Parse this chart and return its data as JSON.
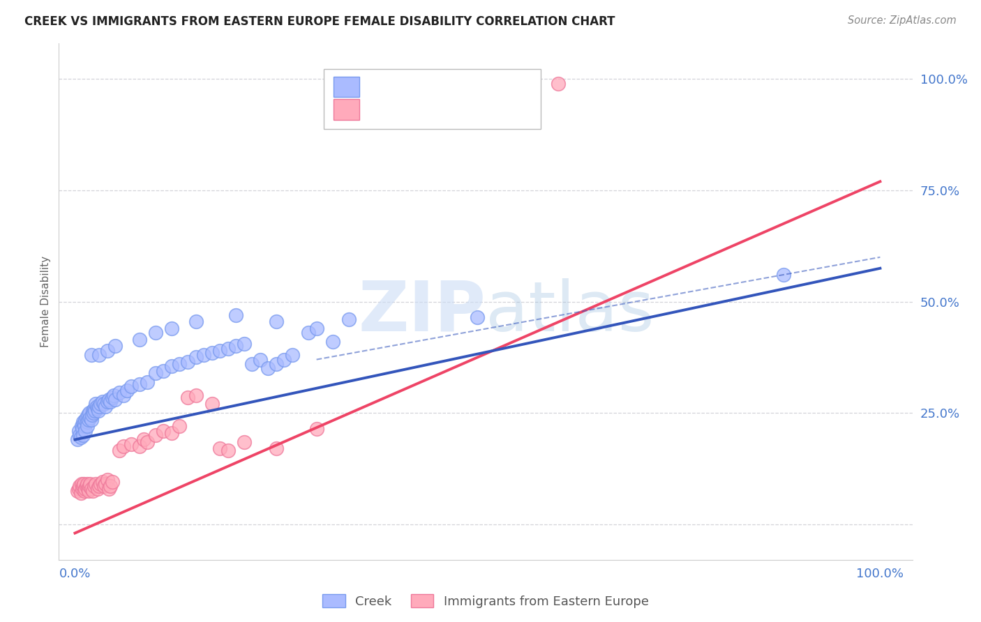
{
  "title": "CREEK VS IMMIGRANTS FROM EASTERN EUROPE FEMALE DISABILITY CORRELATION CHART",
  "source": "Source: ZipAtlas.com",
  "ylabel": "Female Disability",
  "background_color": "#ffffff",
  "grid_color": "#c8c8d0",
  "creek_color": "#aabbff",
  "creek_edge_color": "#7799ee",
  "imm_color": "#ffaabb",
  "imm_edge_color": "#ee7799",
  "creek_line_color": "#3355bb",
  "imm_line_color": "#ee4466",
  "title_color": "#222222",
  "label_color": "#4477cc",
  "creek_scatter": [
    [
      0.003,
      0.19
    ],
    [
      0.005,
      0.21
    ],
    [
      0.006,
      0.2
    ],
    [
      0.007,
      0.195
    ],
    [
      0.008,
      0.22
    ],
    [
      0.009,
      0.215
    ],
    [
      0.01,
      0.23
    ],
    [
      0.01,
      0.2
    ],
    [
      0.011,
      0.225
    ],
    [
      0.012,
      0.22
    ],
    [
      0.013,
      0.21
    ],
    [
      0.013,
      0.235
    ],
    [
      0.014,
      0.24
    ],
    [
      0.015,
      0.23
    ],
    [
      0.015,
      0.22
    ],
    [
      0.016,
      0.245
    ],
    [
      0.017,
      0.235
    ],
    [
      0.018,
      0.25
    ],
    [
      0.019,
      0.24
    ],
    [
      0.02,
      0.235
    ],
    [
      0.021,
      0.245
    ],
    [
      0.022,
      0.255
    ],
    [
      0.023,
      0.25
    ],
    [
      0.024,
      0.26
    ],
    [
      0.025,
      0.255
    ],
    [
      0.026,
      0.27
    ],
    [
      0.027,
      0.265
    ],
    [
      0.028,
      0.26
    ],
    [
      0.029,
      0.255
    ],
    [
      0.03,
      0.265
    ],
    [
      0.032,
      0.27
    ],
    [
      0.034,
      0.275
    ],
    [
      0.036,
      0.27
    ],
    [
      0.038,
      0.265
    ],
    [
      0.04,
      0.275
    ],
    [
      0.042,
      0.28
    ],
    [
      0.044,
      0.275
    ],
    [
      0.046,
      0.285
    ],
    [
      0.048,
      0.29
    ],
    [
      0.05,
      0.28
    ],
    [
      0.055,
      0.295
    ],
    [
      0.06,
      0.29
    ],
    [
      0.065,
      0.3
    ],
    [
      0.07,
      0.31
    ],
    [
      0.08,
      0.315
    ],
    [
      0.09,
      0.32
    ],
    [
      0.1,
      0.34
    ],
    [
      0.11,
      0.345
    ],
    [
      0.12,
      0.355
    ],
    [
      0.13,
      0.36
    ],
    [
      0.14,
      0.365
    ],
    [
      0.15,
      0.375
    ],
    [
      0.16,
      0.38
    ],
    [
      0.17,
      0.385
    ],
    [
      0.18,
      0.39
    ],
    [
      0.19,
      0.395
    ],
    [
      0.2,
      0.4
    ],
    [
      0.21,
      0.405
    ],
    [
      0.22,
      0.36
    ],
    [
      0.23,
      0.37
    ],
    [
      0.24,
      0.35
    ],
    [
      0.25,
      0.36
    ],
    [
      0.26,
      0.37
    ],
    [
      0.27,
      0.38
    ],
    [
      0.29,
      0.43
    ],
    [
      0.3,
      0.44
    ],
    [
      0.32,
      0.41
    ],
    [
      0.34,
      0.46
    ],
    [
      0.02,
      0.38
    ],
    [
      0.03,
      0.38
    ],
    [
      0.04,
      0.39
    ],
    [
      0.05,
      0.4
    ],
    [
      0.08,
      0.415
    ],
    [
      0.1,
      0.43
    ],
    [
      0.12,
      0.44
    ],
    [
      0.15,
      0.455
    ],
    [
      0.2,
      0.47
    ],
    [
      0.25,
      0.455
    ],
    [
      0.5,
      0.465
    ],
    [
      0.88,
      0.56
    ]
  ],
  "imm_scatter": [
    [
      0.003,
      0.075
    ],
    [
      0.005,
      0.08
    ],
    [
      0.006,
      0.085
    ],
    [
      0.007,
      0.07
    ],
    [
      0.008,
      0.09
    ],
    [
      0.009,
      0.08
    ],
    [
      0.01,
      0.085
    ],
    [
      0.011,
      0.09
    ],
    [
      0.012,
      0.075
    ],
    [
      0.013,
      0.08
    ],
    [
      0.014,
      0.085
    ],
    [
      0.015,
      0.09
    ],
    [
      0.016,
      0.08
    ],
    [
      0.017,
      0.075
    ],
    [
      0.018,
      0.085
    ],
    [
      0.019,
      0.09
    ],
    [
      0.02,
      0.08
    ],
    [
      0.022,
      0.075
    ],
    [
      0.024,
      0.085
    ],
    [
      0.026,
      0.09
    ],
    [
      0.028,
      0.08
    ],
    [
      0.03,
      0.085
    ],
    [
      0.032,
      0.09
    ],
    [
      0.034,
      0.095
    ],
    [
      0.036,
      0.085
    ],
    [
      0.038,
      0.09
    ],
    [
      0.04,
      0.1
    ],
    [
      0.042,
      0.08
    ],
    [
      0.044,
      0.085
    ],
    [
      0.046,
      0.095
    ],
    [
      0.055,
      0.165
    ],
    [
      0.06,
      0.175
    ],
    [
      0.07,
      0.18
    ],
    [
      0.08,
      0.175
    ],
    [
      0.085,
      0.19
    ],
    [
      0.09,
      0.185
    ],
    [
      0.1,
      0.2
    ],
    [
      0.11,
      0.21
    ],
    [
      0.12,
      0.205
    ],
    [
      0.13,
      0.22
    ],
    [
      0.14,
      0.285
    ],
    [
      0.15,
      0.29
    ],
    [
      0.17,
      0.27
    ],
    [
      0.18,
      0.17
    ],
    [
      0.19,
      0.165
    ],
    [
      0.21,
      0.185
    ],
    [
      0.25,
      0.17
    ],
    [
      0.3,
      0.215
    ],
    [
      0.6,
      0.99
    ]
  ],
  "creek_line": {
    "x0": 0.0,
    "y0": 0.19,
    "x1": 1.0,
    "y1": 0.575
  },
  "imm_line": {
    "x0": 0.0,
    "y0": -0.02,
    "x1": 1.0,
    "y1": 0.77
  },
  "creek_ci_line": {
    "x0": 0.3,
    "y0": 0.37,
    "x1": 1.0,
    "y1": 0.6
  },
  "ylim": [
    -0.08,
    1.08
  ],
  "xlim": [
    -0.02,
    1.04
  ],
  "ytick_vals": [
    0.0,
    0.25,
    0.5,
    0.75,
    1.0
  ],
  "ytick_labels": [
    "",
    "25.0%",
    "50.0%",
    "75.0%",
    "100.0%"
  ],
  "xtick_vals": [
    0.0,
    1.0
  ],
  "xtick_labels": [
    "0.0%",
    "100.0%"
  ]
}
